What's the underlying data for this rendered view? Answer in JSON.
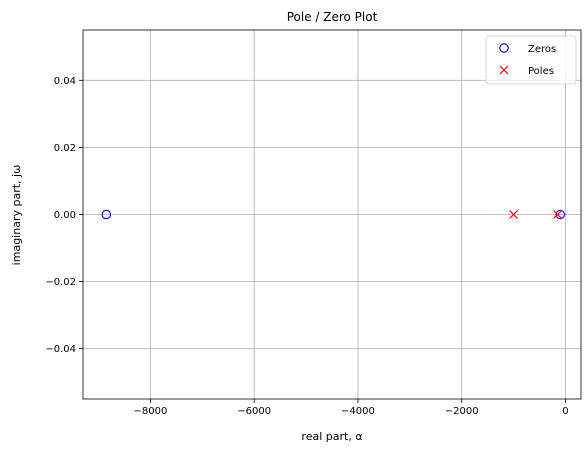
{
  "chart_data": {
    "type": "scatter",
    "title": "Pole / Zero Plot",
    "xlabel": "real part, α",
    "ylabel": "imaginary part, jω",
    "xlim": [
      -9300,
      300
    ],
    "ylim": [
      -0.055,
      0.055
    ],
    "grid": true,
    "legend_position": "top-right",
    "x_ticks": [
      -8000,
      -6000,
      -4000,
      -2000,
      0
    ],
    "y_ticks": [
      -0.04,
      -0.02,
      0.0,
      0.02,
      0.04
    ],
    "x_tick_labels": [
      "−8000",
      "−6000",
      "−4000",
      "−2000",
      "0"
    ],
    "y_tick_labels": [
      "−0.04",
      "−0.02",
      "0.00",
      "0.02",
      "0.04"
    ],
    "series": [
      {
        "name": "Zeros",
        "marker": "circle-open",
        "color": "#0000ff",
        "points": [
          {
            "x": -8850,
            "y": 0
          },
          {
            "x": -100,
            "y": 0
          }
        ]
      },
      {
        "name": "Poles",
        "marker": "x",
        "color": "#ff0000",
        "points": [
          {
            "x": -1000,
            "y": 0
          },
          {
            "x": -150,
            "y": 0
          }
        ]
      }
    ]
  }
}
